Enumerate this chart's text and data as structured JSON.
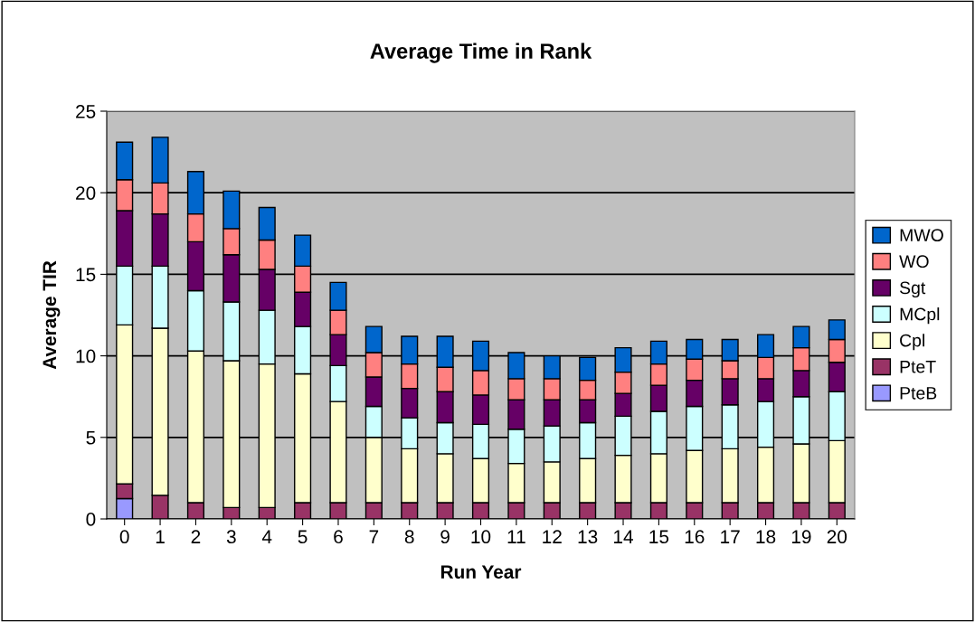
{
  "chart_data": {
    "type": "bar",
    "title": "Average Time in Rank",
    "xlabel": "Run Year",
    "ylabel": "Average TIR",
    "categories": [
      "0",
      "1",
      "2",
      "3",
      "4",
      "5",
      "6",
      "7",
      "8",
      "9",
      "10",
      "11",
      "12",
      "13",
      "14",
      "15",
      "16",
      "17",
      "18",
      "19",
      "20"
    ],
    "stacked": true,
    "ylim": [
      0,
      25
    ],
    "yticks": [
      0,
      5,
      10,
      15,
      20,
      25
    ],
    "grid": "y",
    "legend": "right",
    "series": [
      {
        "name": "PteB",
        "color": "#9999ff",
        "values": [
          1.25,
          null,
          null,
          null,
          null,
          null,
          null,
          null,
          null,
          null,
          null,
          null,
          null,
          null,
          null,
          null,
          null,
          null,
          null,
          null,
          null
        ]
      },
      {
        "name": "PteT",
        "color": "#993366",
        "values": [
          0.9,
          1.45,
          1.0,
          0.7,
          0.7,
          1.0,
          1.0,
          1.0,
          1.0,
          1.0,
          1.0,
          1.0,
          1.0,
          1.0,
          1.0,
          1.0,
          1.0,
          1.0,
          1.0,
          1.0,
          1.0
        ]
      },
      {
        "name": "Cpl",
        "color": "#ffffcc",
        "values": [
          9.75,
          10.25,
          9.3,
          9.0,
          8.8,
          7.9,
          6.2,
          4.0,
          3.3,
          3.0,
          2.7,
          2.4,
          2.5,
          2.7,
          2.9,
          3.0,
          3.2,
          3.3,
          3.4,
          3.6,
          3.8
        ]
      },
      {
        "name": "MCpl",
        "color": "#ccffff",
        "values": [
          3.6,
          3.8,
          3.7,
          3.6,
          3.3,
          2.9,
          2.2,
          1.9,
          1.9,
          1.9,
          2.1,
          2.1,
          2.2,
          2.2,
          2.4,
          2.6,
          2.7,
          2.7,
          2.8,
          2.9,
          3.0
        ]
      },
      {
        "name": "Sgt",
        "color": "#660066",
        "values": [
          3.4,
          3.2,
          3.0,
          2.9,
          2.5,
          2.1,
          1.9,
          1.8,
          1.8,
          1.9,
          1.8,
          1.8,
          1.6,
          1.4,
          1.4,
          1.6,
          1.6,
          1.6,
          1.4,
          1.6,
          1.8
        ]
      },
      {
        "name": "WO",
        "color": "#ff8080",
        "values": [
          1.9,
          1.9,
          1.7,
          1.6,
          1.8,
          1.6,
          1.5,
          1.5,
          1.5,
          1.5,
          1.5,
          1.3,
          1.3,
          1.2,
          1.3,
          1.3,
          1.3,
          1.1,
          1.3,
          1.4,
          1.4
        ]
      },
      {
        "name": "MWO",
        "color": "#0066cc",
        "values": [
          2.3,
          2.8,
          2.6,
          2.3,
          2.0,
          1.9,
          1.7,
          1.6,
          1.7,
          1.9,
          1.8,
          1.6,
          1.4,
          1.4,
          1.5,
          1.4,
          1.2,
          1.3,
          1.4,
          1.3,
          1.2
        ]
      }
    ]
  }
}
